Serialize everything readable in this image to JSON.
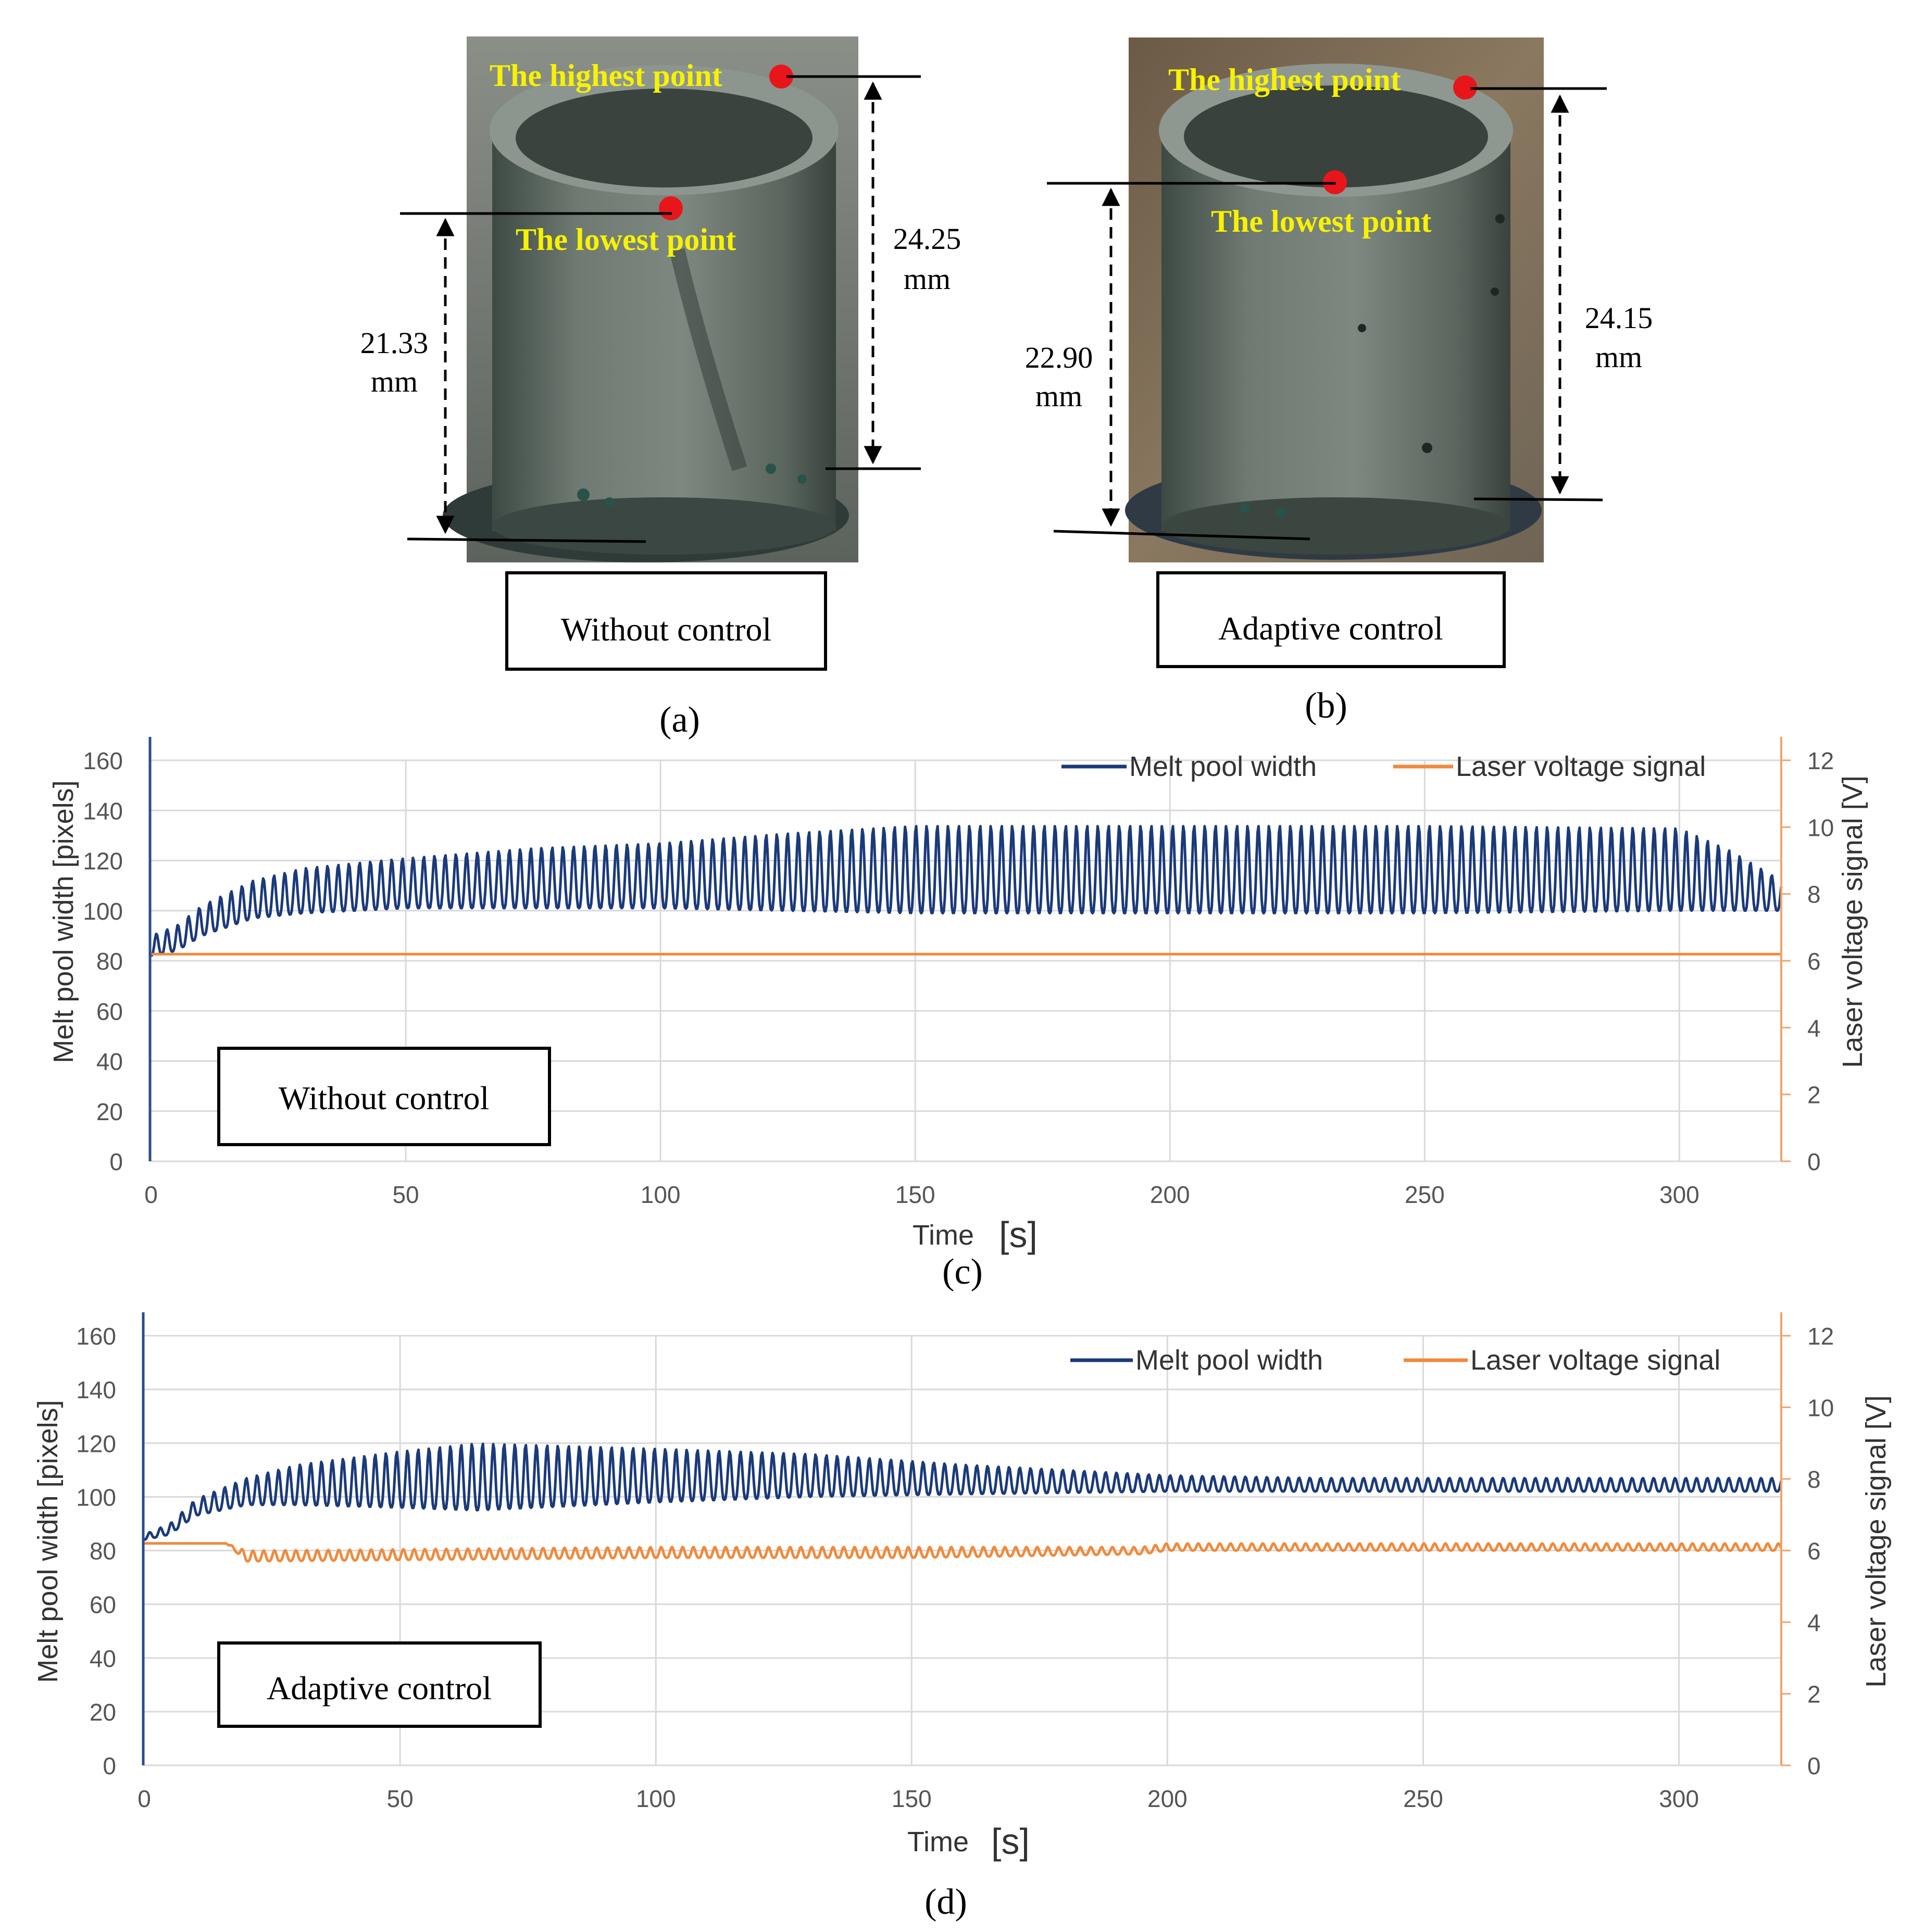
{
  "colors": {
    "melt_pool": "#1a3a7a",
    "laser": "#f08a3c",
    "axis_left": "#2b4c8c",
    "axis_right": "#f2a36a",
    "annotation_text": "#f7f200",
    "point_marker": "#e8161b",
    "grid": "#d9d9d9"
  },
  "photos": {
    "a": {
      "caption": "(a)",
      "box_label": "Without control",
      "highest_label": "The highest point",
      "lowest_label": "The lowest point",
      "height_high_value": "24.25",
      "height_high_unit": "mm",
      "height_low_value": "21.33",
      "height_low_unit": "mm"
    },
    "b": {
      "caption": "(b)",
      "box_label": "Adaptive control",
      "highest_label": "The highest point",
      "lowest_label": "The lowest point",
      "height_high_value": "24.15",
      "height_high_unit": "mm",
      "height_low_value": "22.90",
      "height_low_unit": "mm"
    }
  },
  "chart_data": [
    {
      "id": "c",
      "type": "line",
      "caption": "(c)",
      "box_label": "Without control",
      "xlabel": "Time",
      "xunit": "[s]",
      "ylabel_left": "Melt pool width [pixels]",
      "ylabel_right": "Laser voltage signal [V]",
      "xlim": [
        0,
        320
      ],
      "ylim_left": [
        0,
        160
      ],
      "ylim_right": [
        0,
        12
      ],
      "x_ticks": [
        "0",
        "50",
        "100",
        "150",
        "200",
        "250",
        "300"
      ],
      "y_ticks_left": [
        "0",
        "20",
        "40",
        "60",
        "80",
        "100",
        "120",
        "140",
        "160"
      ],
      "y_ticks_right": [
        "0",
        "2",
        "4",
        "6",
        "8",
        "10",
        "12"
      ],
      "legend": [
        "Melt pool width",
        "Laser voltage signal"
      ],
      "series": [
        {
          "name": "Melt pool width",
          "axis": "left",
          "period_s": 2.1,
          "envelope_t": [
            0,
            5,
            10,
            20,
            30,
            50,
            75,
            100,
            125,
            150,
            200,
            250,
            300,
            310,
            320
          ],
          "envelope_min": [
            82,
            84,
            90,
            97,
            99,
            101,
            101,
            101,
            100,
            99,
            99,
            99,
            100,
            100,
            100
          ],
          "envelope_max": [
            90,
            94,
            102,
            112,
            117,
            121,
            125,
            127,
            131,
            134,
            134,
            134,
            133,
            124,
            112
          ]
        },
        {
          "name": "Laser voltage signal",
          "axis": "right",
          "t": [
            0,
            320
          ],
          "values": [
            6.2,
            6.2
          ]
        }
      ]
    },
    {
      "id": "d",
      "type": "line",
      "caption": "(d)",
      "box_label": "Adaptive control",
      "xlabel": "Time",
      "xunit": "[s]",
      "ylabel_left": "Melt pool width [pixels]",
      "ylabel_right": "Laser voltage signal [V]",
      "xlim": [
        0,
        320
      ],
      "ylim_left": [
        0,
        160
      ],
      "ylim_right": [
        0,
        12
      ],
      "x_ticks": [
        "0",
        "50",
        "100",
        "150",
        "200",
        "250",
        "300"
      ],
      "y_ticks_left": [
        "0",
        "20",
        "40",
        "60",
        "80",
        "100",
        "120",
        "140",
        "160"
      ],
      "y_ticks_right": [
        "0",
        "2",
        "4",
        "6",
        "8",
        "10",
        "12"
      ],
      "legend": [
        "Melt pool width",
        "Laser voltage signal"
      ],
      "series": [
        {
          "name": "Melt pool width",
          "axis": "left",
          "period_s": 2.1,
          "envelope_t": [
            0,
            5,
            10,
            20,
            30,
            50,
            65,
            100,
            130,
            160,
            200,
            230,
            320
          ],
          "envelope_min": [
            84,
            86,
            93,
            97,
            97,
            96,
            95,
            98,
            100,
            101,
            102,
            102,
            102
          ],
          "envelope_max": [
            86,
            90,
            99,
            107,
            112,
            117,
            120,
            118,
            116,
            112,
            108,
            107,
            107
          ]
        },
        {
          "name": "Laser voltage signal",
          "axis": "right",
          "period_s": 2.1,
          "start_s": 16,
          "initial_value": 6.2,
          "envelope_t": [
            16,
            20,
            100,
            150,
            195,
            200,
            320
          ],
          "envelope_min": [
            6.2,
            5.7,
            5.8,
            5.8,
            5.9,
            6.0,
            6.0
          ],
          "envelope_max": [
            6.2,
            6.0,
            6.1,
            6.1,
            6.1,
            6.2,
            6.2
          ]
        }
      ]
    }
  ]
}
